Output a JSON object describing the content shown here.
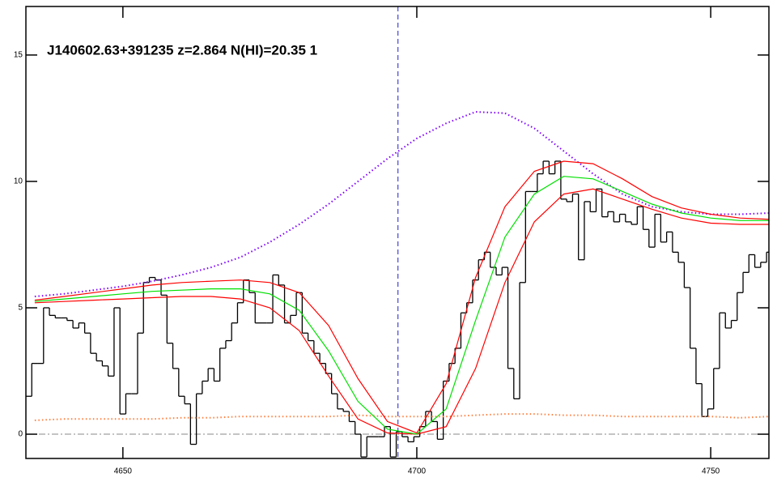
{
  "chart_data": {
    "type": "line",
    "title": "J140602.63+391235 z=2.864 N(HI)=20.35 1",
    "xlim": [
      4633.5,
      4759.9
    ],
    "ylim": [
      -0.96,
      16.92
    ],
    "xticks": [
      4650,
      4700,
      4750
    ],
    "yticks": [
      0,
      5,
      10,
      15
    ],
    "vline": 4696.8,
    "hline": 0,
    "series": [
      {
        "color": "#000000",
        "style": "steps",
        "x": [
          4634,
          4635,
          4636,
          4637,
          4638,
          4639,
          4640,
          4641,
          4642,
          4643,
          4644,
          4645,
          4646,
          4647,
          4648,
          4649,
          4650,
          4651,
          4652,
          4653,
          4654,
          4655,
          4656,
          4657,
          4658,
          4659,
          4660,
          4661,
          4662,
          4663,
          4664,
          4665,
          4666,
          4667,
          4668,
          4669,
          4670,
          4671,
          4672,
          4673,
          4674,
          4675,
          4676,
          4677,
          4678,
          4679,
          4680,
          4681,
          4682,
          4683,
          4684,
          4685,
          4686,
          4687,
          4688,
          4689,
          4690,
          4691,
          4692,
          4693,
          4694,
          4695,
          4696,
          4697,
          4698,
          4699,
          4700,
          4701,
          4702,
          4703,
          4704,
          4705,
          4706,
          4707,
          4708,
          4709,
          4710,
          4711,
          4712,
          4713,
          4714,
          4715,
          4716,
          4717,
          4718,
          4719,
          4720,
          4721,
          4722,
          4723,
          4724,
          4725,
          4726,
          4727,
          4728,
          4729,
          4730,
          4731,
          4732,
          4733,
          4734,
          4735,
          4736,
          4737,
          4738,
          4739,
          4740,
          4741,
          4742,
          4743,
          4744,
          4745,
          4746,
          4747,
          4748,
          4749,
          4750,
          4751,
          4752,
          4753,
          4754,
          4755,
          4756,
          4757,
          4758,
          4759,
          4760
        ],
        "values": [
          1.5,
          2.8,
          2.8,
          5.0,
          4.7,
          4.6,
          4.6,
          4.5,
          4.2,
          4.4,
          4.0,
          3.2,
          2.9,
          2.7,
          2.3,
          5.0,
          0.8,
          1.6,
          1.6,
          4.0,
          6.0,
          6.2,
          6.1,
          5.5,
          3.6,
          2.6,
          1.5,
          1.2,
          -0.4,
          1.6,
          2.1,
          2.6,
          2.1,
          3.4,
          3.7,
          4.4,
          5.2,
          6.1,
          5.6,
          4.4,
          4.4,
          4.4,
          6.3,
          5.9,
          4.4,
          4.7,
          5.6,
          4.0,
          3.7,
          3.2,
          2.8,
          2.4,
          1.6,
          1.0,
          0.9,
          0.5,
          0.0,
          -0.9,
          -0.1,
          -0.1,
          -0.1,
          0.3,
          -0.9,
          0.1,
          -0.1,
          -0.3,
          -0.1,
          0.3,
          0.9,
          0.5,
          -0.2,
          2.1,
          2.8,
          3.4,
          4.8,
          5.2,
          6.1,
          6.9,
          7.2,
          6.6,
          6.3,
          6.6,
          2.6,
          1.4,
          6.0,
          9.6,
          9.6,
          10.3,
          10.8,
          10.3,
          10.8,
          9.3,
          9.2,
          9.5,
          6.9,
          9.2,
          8.8,
          9.7,
          8.6,
          8.8,
          8.4,
          8.7,
          8.4,
          8.3,
          9.0,
          8.1,
          7.4,
          8.7,
          7.6,
          8.0,
          7.2,
          6.8,
          5.8,
          3.4,
          2.0,
          0.7,
          1.0,
          2.6,
          4.8,
          4.2,
          4.5,
          5.6,
          6.4,
          7.1,
          6.6,
          6.8,
          7.2
        ]
      },
      {
        "color": "#8000ff",
        "style": "dotted",
        "x": [
          4635,
          4640,
          4645,
          4650,
          4655,
          4660,
          4665,
          4670,
          4675,
          4680,
          4685,
          4690,
          4695,
          4700,
          4705,
          4710,
          4715,
          4720,
          4725,
          4730,
          4735,
          4740,
          4745,
          4750,
          4755,
          4760
        ],
        "values": [
          5.45,
          5.55,
          5.7,
          5.85,
          6.05,
          6.3,
          6.6,
          7.0,
          7.6,
          8.3,
          9.1,
          10.0,
          10.9,
          11.7,
          12.3,
          12.75,
          12.7,
          12.1,
          11.2,
          10.3,
          9.5,
          9.0,
          8.8,
          8.7,
          8.7,
          8.75
        ]
      },
      {
        "color": "#ff8040",
        "style": "dotted",
        "x": [
          4635,
          4640,
          4645,
          4650,
          4655,
          4660,
          4665,
          4670,
          4675,
          4680,
          4685,
          4690,
          4695,
          4700,
          4705,
          4710,
          4715,
          4720,
          4725,
          4730,
          4735,
          4740,
          4745,
          4750,
          4755,
          4760
        ],
        "values": [
          0.55,
          0.6,
          0.6,
          0.6,
          0.6,
          0.65,
          0.65,
          0.7,
          0.7,
          0.7,
          0.7,
          0.75,
          0.7,
          0.7,
          0.7,
          0.75,
          0.8,
          0.8,
          0.75,
          0.75,
          0.7,
          0.7,
          0.7,
          0.7,
          0.65,
          0.7
        ]
      },
      {
        "color": "#ff0000",
        "style": "solid",
        "x": [
          4635,
          4640,
          4645,
          4650,
          4655,
          4660,
          4665,
          4670,
          4675,
          4680,
          4685,
          4690,
          4695,
          4700,
          4705,
          4710,
          4715,
          4720,
          4725,
          4730,
          4735,
          4740,
          4745,
          4750,
          4755,
          4760
        ],
        "values": [
          5.3,
          5.45,
          5.6,
          5.75,
          5.9,
          6.0,
          6.05,
          6.1,
          6.0,
          5.6,
          4.3,
          2.2,
          0.5,
          0.05,
          2.0,
          6.2,
          9.0,
          10.4,
          10.8,
          10.7,
          10.1,
          9.4,
          8.95,
          8.7,
          8.55,
          8.5
        ]
      },
      {
        "color": "#ff0000",
        "style": "solid",
        "x": [
          4635,
          4640,
          4645,
          4650,
          4655,
          4660,
          4665,
          4670,
          4675,
          4680,
          4685,
          4690,
          4695,
          4700,
          4705,
          4710,
          4715,
          4720,
          4725,
          4730,
          4735,
          4740,
          4745,
          4750,
          4755,
          4760
        ],
        "values": [
          5.2,
          5.25,
          5.3,
          5.35,
          5.4,
          5.45,
          5.45,
          5.35,
          5.0,
          4.1,
          2.3,
          0.6,
          0.05,
          0.0,
          0.3,
          2.6,
          6.0,
          8.4,
          9.5,
          9.7,
          9.3,
          8.9,
          8.55,
          8.35,
          8.3,
          8.3
        ]
      },
      {
        "color": "#00e000",
        "style": "solid",
        "x": [
          4635,
          4640,
          4645,
          4650,
          4655,
          4660,
          4665,
          4670,
          4675,
          4680,
          4685,
          4690,
          4695,
          4700,
          4705,
          4710,
          4715,
          4720,
          4725,
          4730,
          4735,
          4740,
          4745,
          4750,
          4755,
          4760
        ],
        "values": [
          5.25,
          5.35,
          5.45,
          5.55,
          5.65,
          5.7,
          5.75,
          5.75,
          5.55,
          4.9,
          3.3,
          1.3,
          0.2,
          0.0,
          1.0,
          4.5,
          7.8,
          9.5,
          10.2,
          10.1,
          9.6,
          9.1,
          8.75,
          8.55,
          8.45,
          8.45
        ]
      }
    ]
  }
}
